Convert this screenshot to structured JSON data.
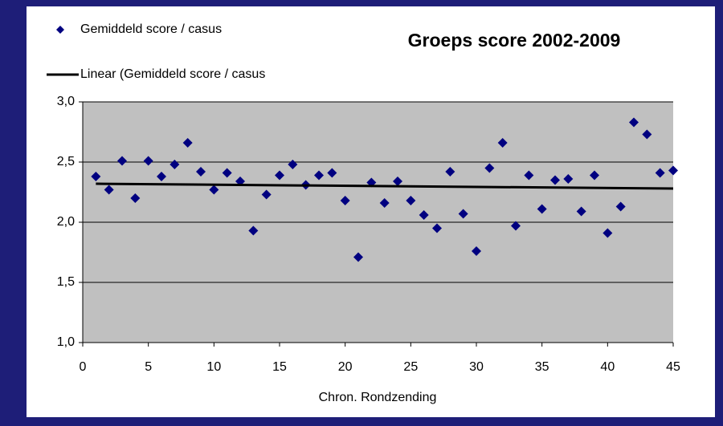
{
  "chart_data": {
    "type": "scatter",
    "title": "Groeps score 2002-2009",
    "x_label": "Chron. Rondzending",
    "x": [
      1,
      2,
      3,
      4,
      5,
      6,
      7,
      8,
      9,
      10,
      11,
      12,
      13,
      14,
      15,
      16,
      17,
      18,
      19,
      20,
      21,
      22,
      23,
      24,
      25,
      26,
      27,
      28,
      29,
      30,
      31,
      32,
      33,
      34,
      35,
      36,
      37,
      38,
      39,
      40,
      41,
      42,
      43,
      44,
      45
    ],
    "series": [
      {
        "name": "Gemiddeld score / casus",
        "color": "#000080",
        "values": [
          2.38,
          2.27,
          2.51,
          2.2,
          2.51,
          2.38,
          2.48,
          2.66,
          2.42,
          2.27,
          2.41,
          2.34,
          1.93,
          2.23,
          2.39,
          2.48,
          2.31,
          2.39,
          2.41,
          2.18,
          1.71,
          2.33,
          2.16,
          2.34,
          2.18,
          2.06,
          1.95,
          2.42,
          2.07,
          1.76,
          2.45,
          2.66,
          1.97,
          2.39,
          2.11,
          2.35,
          2.36,
          2.09,
          2.39,
          1.91,
          2.13,
          2.83,
          2.73,
          2.41,
          2.43
        ]
      },
      {
        "name": "Linear (Gemiddeld score / casus",
        "color": "#000000",
        "type": "line",
        "x": [
          1,
          45
        ],
        "values": [
          2.32,
          2.28
        ]
      }
    ],
    "xlim": [
      0,
      45
    ],
    "xticks": [
      0,
      5,
      10,
      15,
      20,
      25,
      30,
      35,
      40,
      45
    ],
    "ylim": [
      1,
      3
    ],
    "yticks": [
      {
        "value": 1,
        "label": "1,0"
      },
      {
        "value": 1.5,
        "label": "1,5"
      },
      {
        "value": 2,
        "label": "2,0"
      },
      {
        "value": 2.5,
        "label": "2,5"
      },
      {
        "value": 3,
        "label": "3,0"
      }
    ],
    "grid": true,
    "plot_color": "#c0c0c0"
  }
}
